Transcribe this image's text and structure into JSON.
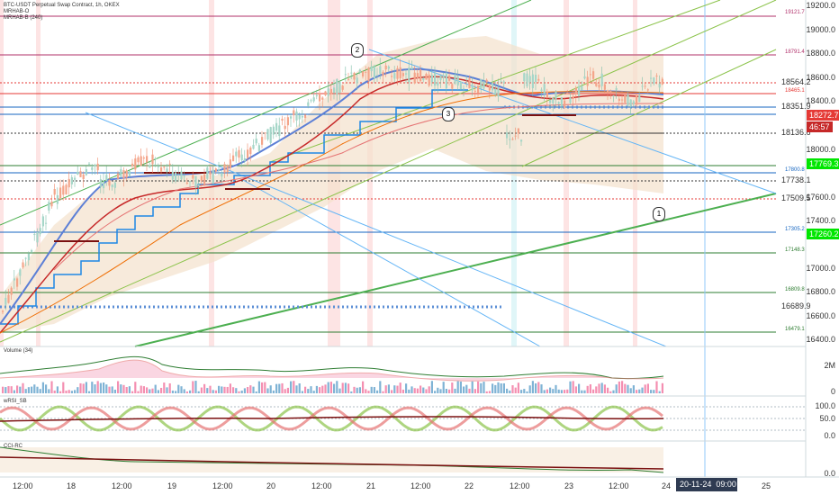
{
  "header": {
    "title": "BTC-USDT Perpetual Swap Contract, 1h, OKEX",
    "indicator1": "MRHAB-O",
    "indicator2": "MRHAB-B (240)"
  },
  "price_axis": {
    "labels": [
      "19200.0",
      "19000.0",
      "18800.0",
      "18600.0",
      "18400.0",
      "18200.0",
      "18000.0",
      "17800.0",
      "17600.0",
      "17400.0",
      "17200.0",
      "17000.0",
      "16800.0",
      "16600.0",
      "16400.0"
    ]
  },
  "price_tags": {
    "current": "18272.7",
    "countdown": "46:57",
    "green_upper": "17769.3",
    "green_lower": "17260.2",
    "lines": [
      {
        "text": "19121.7"
      },
      {
        "text": "18791.4"
      },
      {
        "text": "18564.2"
      },
      {
        "text": "18465.1"
      },
      {
        "text": "18351.9"
      },
      {
        "text": "18136.6"
      },
      {
        "text": "17800.8"
      },
      {
        "text": "17738.1"
      },
      {
        "text": "17509.5"
      },
      {
        "text": "17305.2"
      },
      {
        "text": "17148.3"
      },
      {
        "text": "16809.8"
      },
      {
        "text": "16689.9"
      },
      {
        "text": "16479.1"
      }
    ]
  },
  "markers": {
    "m1": "1",
    "m2": "2",
    "m3": "3"
  },
  "volume_pane": {
    "label": "Volume (34)",
    "axis": [
      "2M",
      "0"
    ]
  },
  "rsi_pane": {
    "label": "wRSI_SB",
    "axis": [
      "100.0",
      "50.0",
      "0.0"
    ]
  },
  "cci_pane": {
    "label": "CCI-RC",
    "axis": [
      "0.0"
    ]
  },
  "time_axis": {
    "labels": [
      "12:00",
      "18",
      "12:00",
      "19",
      "12:00",
      "20",
      "12:00",
      "21",
      "12:00",
      "22",
      "12:00",
      "23",
      "12:00",
      "24",
      "25"
    ],
    "highlight_date": "20-11-24",
    "highlight_time": "09:00"
  },
  "colors": {
    "green_tag": "#00e600",
    "red_tag": "#e53935",
    "countdown_bg": "#c62828"
  }
}
